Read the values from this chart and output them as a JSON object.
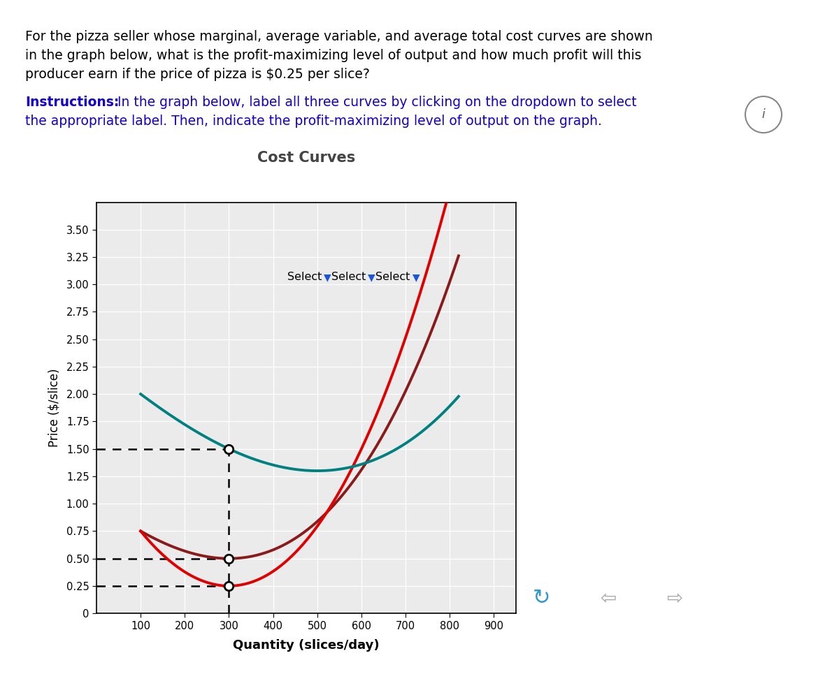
{
  "title": "Cost Curves",
  "xlabel": "Quantity (slices/day)",
  "ylabel": "Price ($/slice)",
  "xlim": [
    0,
    950
  ],
  "ylim": [
    0,
    3.75
  ],
  "xticks": [
    100,
    200,
    300,
    400,
    500,
    600,
    700,
    800,
    900
  ],
  "ytick_vals": [
    0,
    0.25,
    0.5,
    0.75,
    1.0,
    1.25,
    1.5,
    1.75,
    2.0,
    2.25,
    2.5,
    2.75,
    3.0,
    3.25,
    3.5
  ],
  "ytick_labels": [
    "0",
    "0.25",
    "0.50",
    "0.75",
    "1.00",
    "1.25",
    "1.50",
    "1.75",
    "2.00",
    "2.25",
    "2.50",
    "2.75",
    "3.00",
    "3.25",
    "3.50"
  ],
  "header_line1": "For the pizza seller whose marginal, average variable, and average total cost curves are shown",
  "header_line2": "in the graph below, what is the profit-maximizing level of output and how much profit will this",
  "header_line3": "producer earn if the price of pizza is $0.25 per slice?",
  "instruction_bold": "Instructions:",
  "instruction_rest": " In the graph below, label all three curves by clicking on the dropdown to select",
  "instruction_line2": "the appropriate label. Then, indicate the profit-maximizing level of output on the graph.",
  "mc_color": "#e00000",
  "atc_color": "#008080",
  "dark_red_color": "#8b0000",
  "dashed_color": "#000000",
  "background_color": "#ffffff",
  "plot_bg_color": "#ebebeb",
  "blue_color": "#1a00cc",
  "title_color": "#444444"
}
